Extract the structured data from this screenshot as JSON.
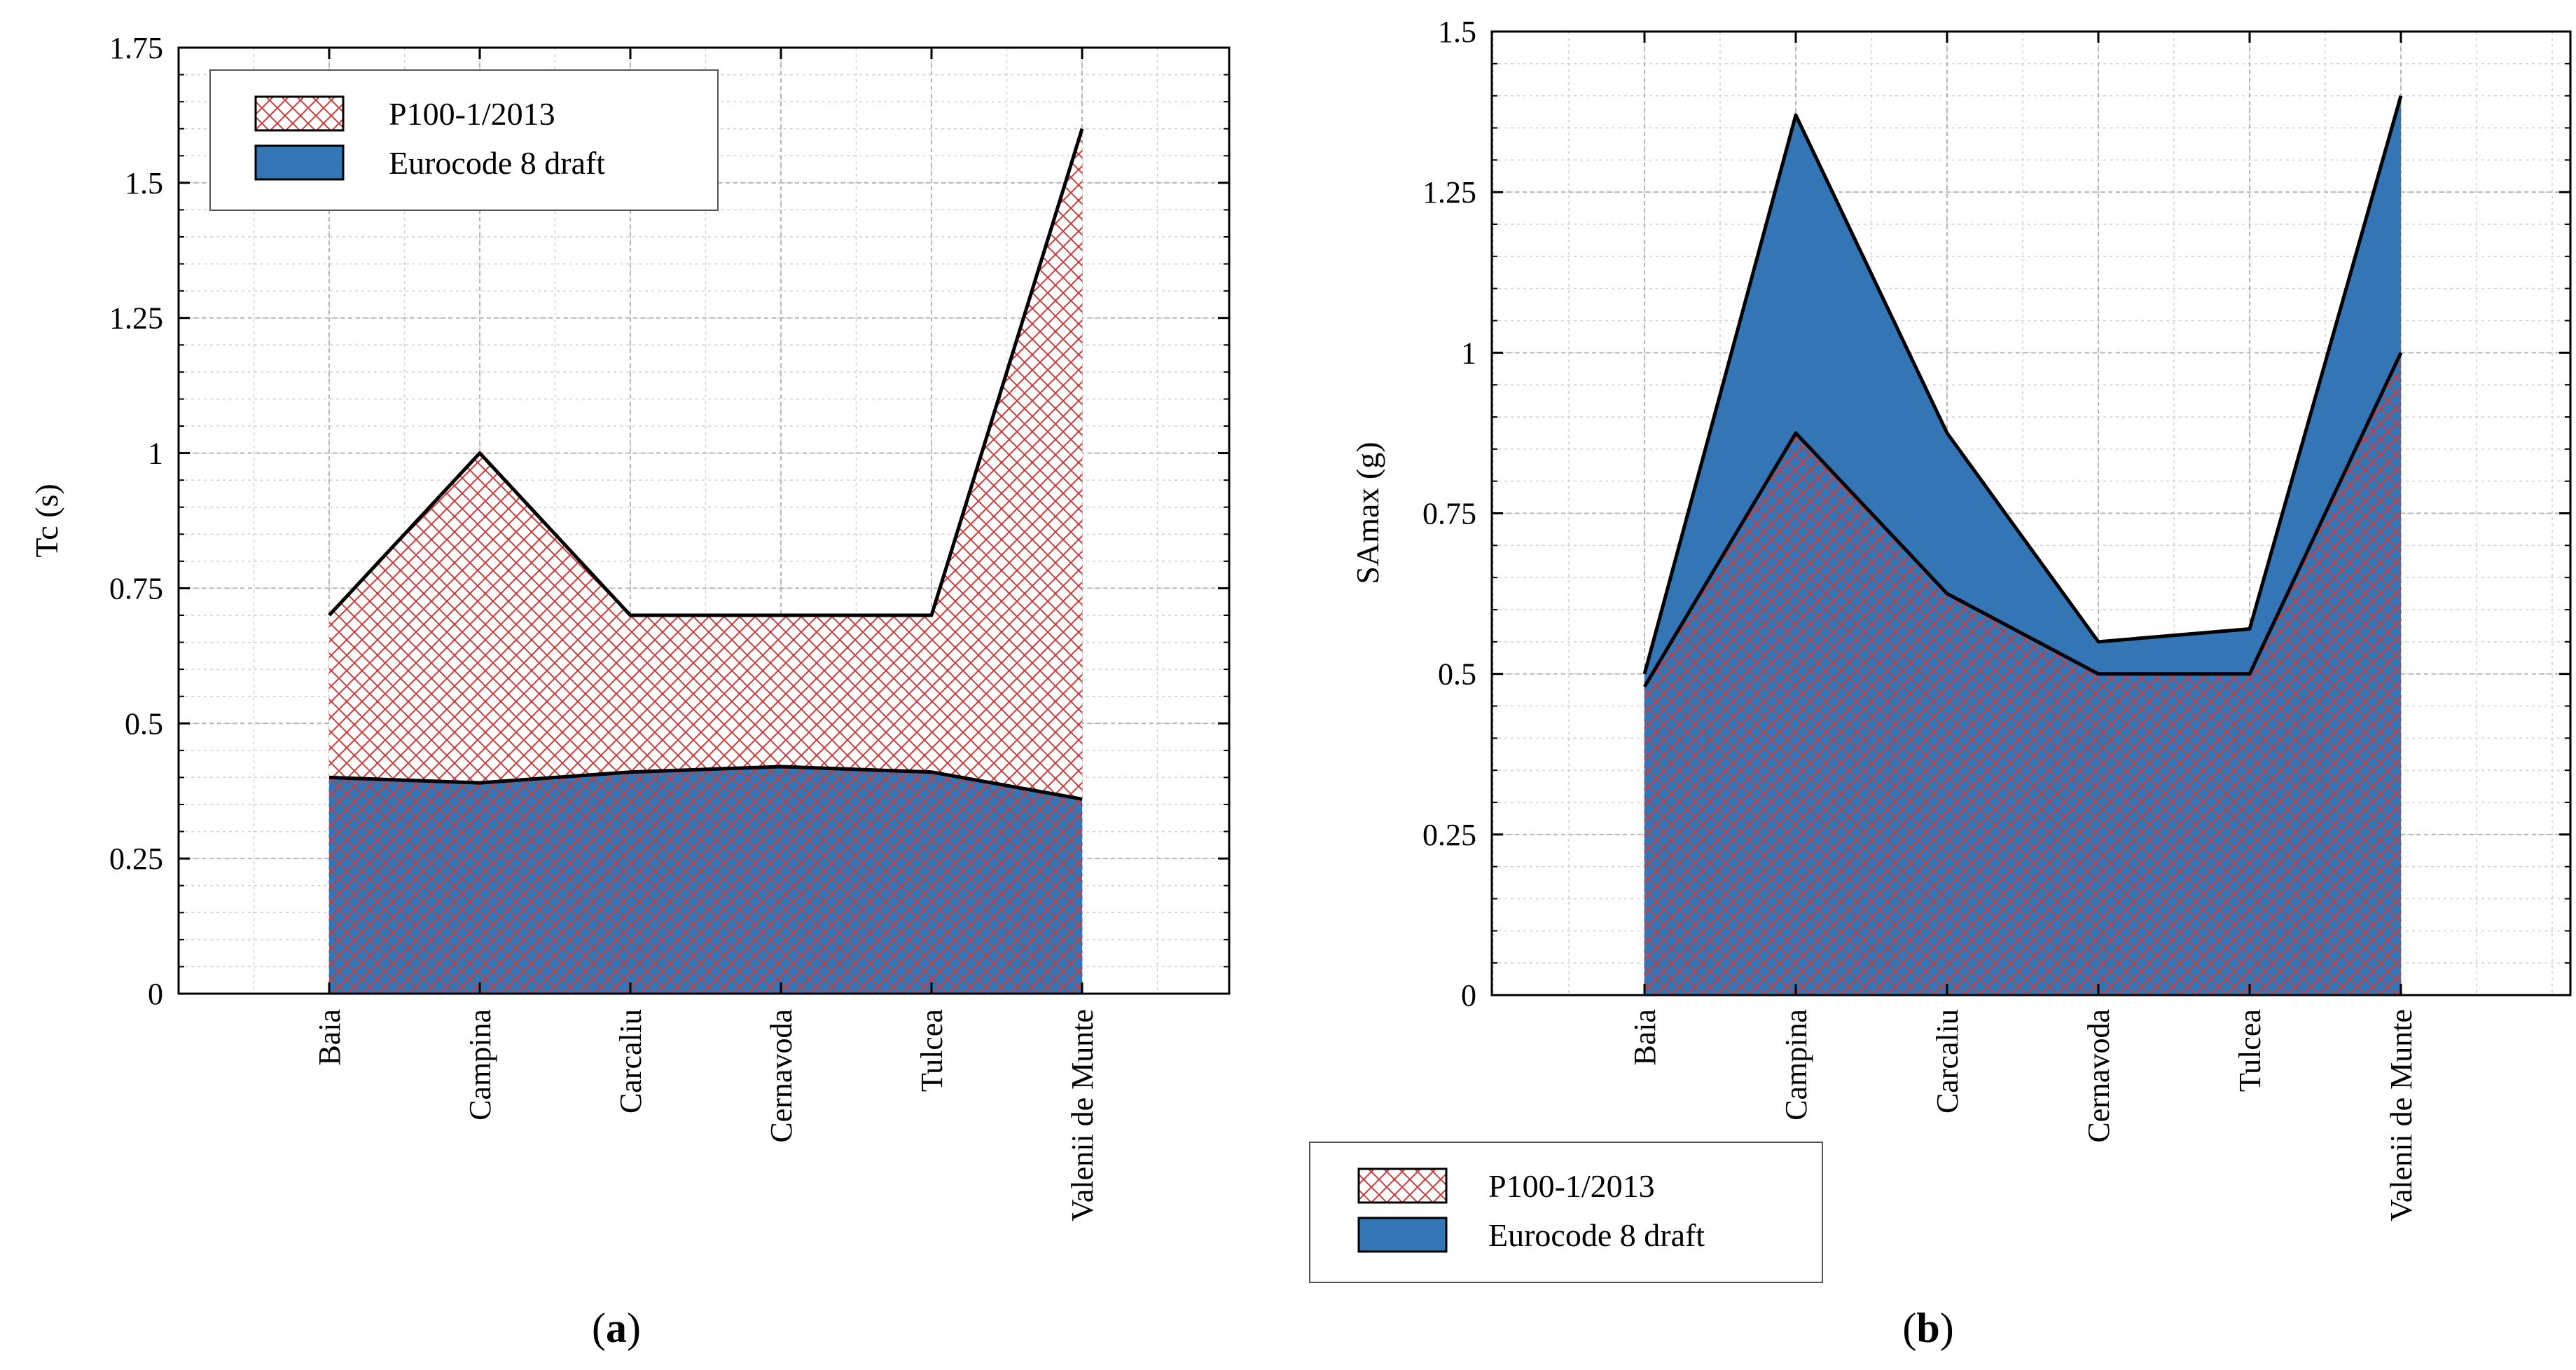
{
  "colors": {
    "p100_hatch": "#cc3b3b",
    "eurocode_fill": "#3475b5",
    "outline": "#000000",
    "grid": "#b5b5b5"
  },
  "legend": {
    "p100_label": "P100-1/2013",
    "eurocode_label": "Eurocode 8 draft"
  },
  "chart_data": [
    {
      "type": "area",
      "panel": "a",
      "caption_open": "(",
      "caption_letter": "a",
      "caption_close": ")",
      "ylabel": "Tc (s)",
      "xlabel": "",
      "categories": [
        "Baia",
        "Campina",
        "Carcaliu",
        "Cernavoda",
        "Tulcea",
        "Valenii de Munte"
      ],
      "ylim": [
        0,
        1.75
      ],
      "yticks": [
        "0",
        "0.25",
        "0.5",
        "0.75",
        "1",
        "1.25",
        "1.5",
        "1.75"
      ],
      "grid": true,
      "legend_position": "top-left",
      "series": [
        {
          "name": "P100-1/2013",
          "style": "hatched",
          "values": [
            0.7,
            1.0,
            0.7,
            0.7,
            0.7,
            1.6
          ]
        },
        {
          "name": "Eurocode 8 draft",
          "style": "solid",
          "values": [
            0.4,
            0.39,
            0.41,
            0.42,
            0.41,
            0.36
          ]
        }
      ]
    },
    {
      "type": "area",
      "panel": "b",
      "caption_open": "(",
      "caption_letter": "b",
      "caption_close": ")",
      "ylabel": "SAmax (g)",
      "xlabel": "",
      "categories": [
        "Baia",
        "Campina",
        "Carcaliu",
        "Cernavoda",
        "Tulcea",
        "Valenii de Munte"
      ],
      "ylim": [
        0,
        1.5
      ],
      "yticks": [
        "0",
        "0.25",
        "0.5",
        "0.75",
        "1",
        "1.25",
        "1.5"
      ],
      "grid": true,
      "legend_position": "below",
      "series": [
        {
          "name": "P100-1/2013",
          "style": "hatched",
          "values": [
            0.48,
            0.875,
            0.625,
            0.5,
            0.5,
            1.0
          ]
        },
        {
          "name": "Eurocode 8 draft",
          "style": "solid",
          "values": [
            0.5,
            1.37,
            0.875,
            0.55,
            0.57,
            1.4
          ]
        }
      ]
    }
  ]
}
